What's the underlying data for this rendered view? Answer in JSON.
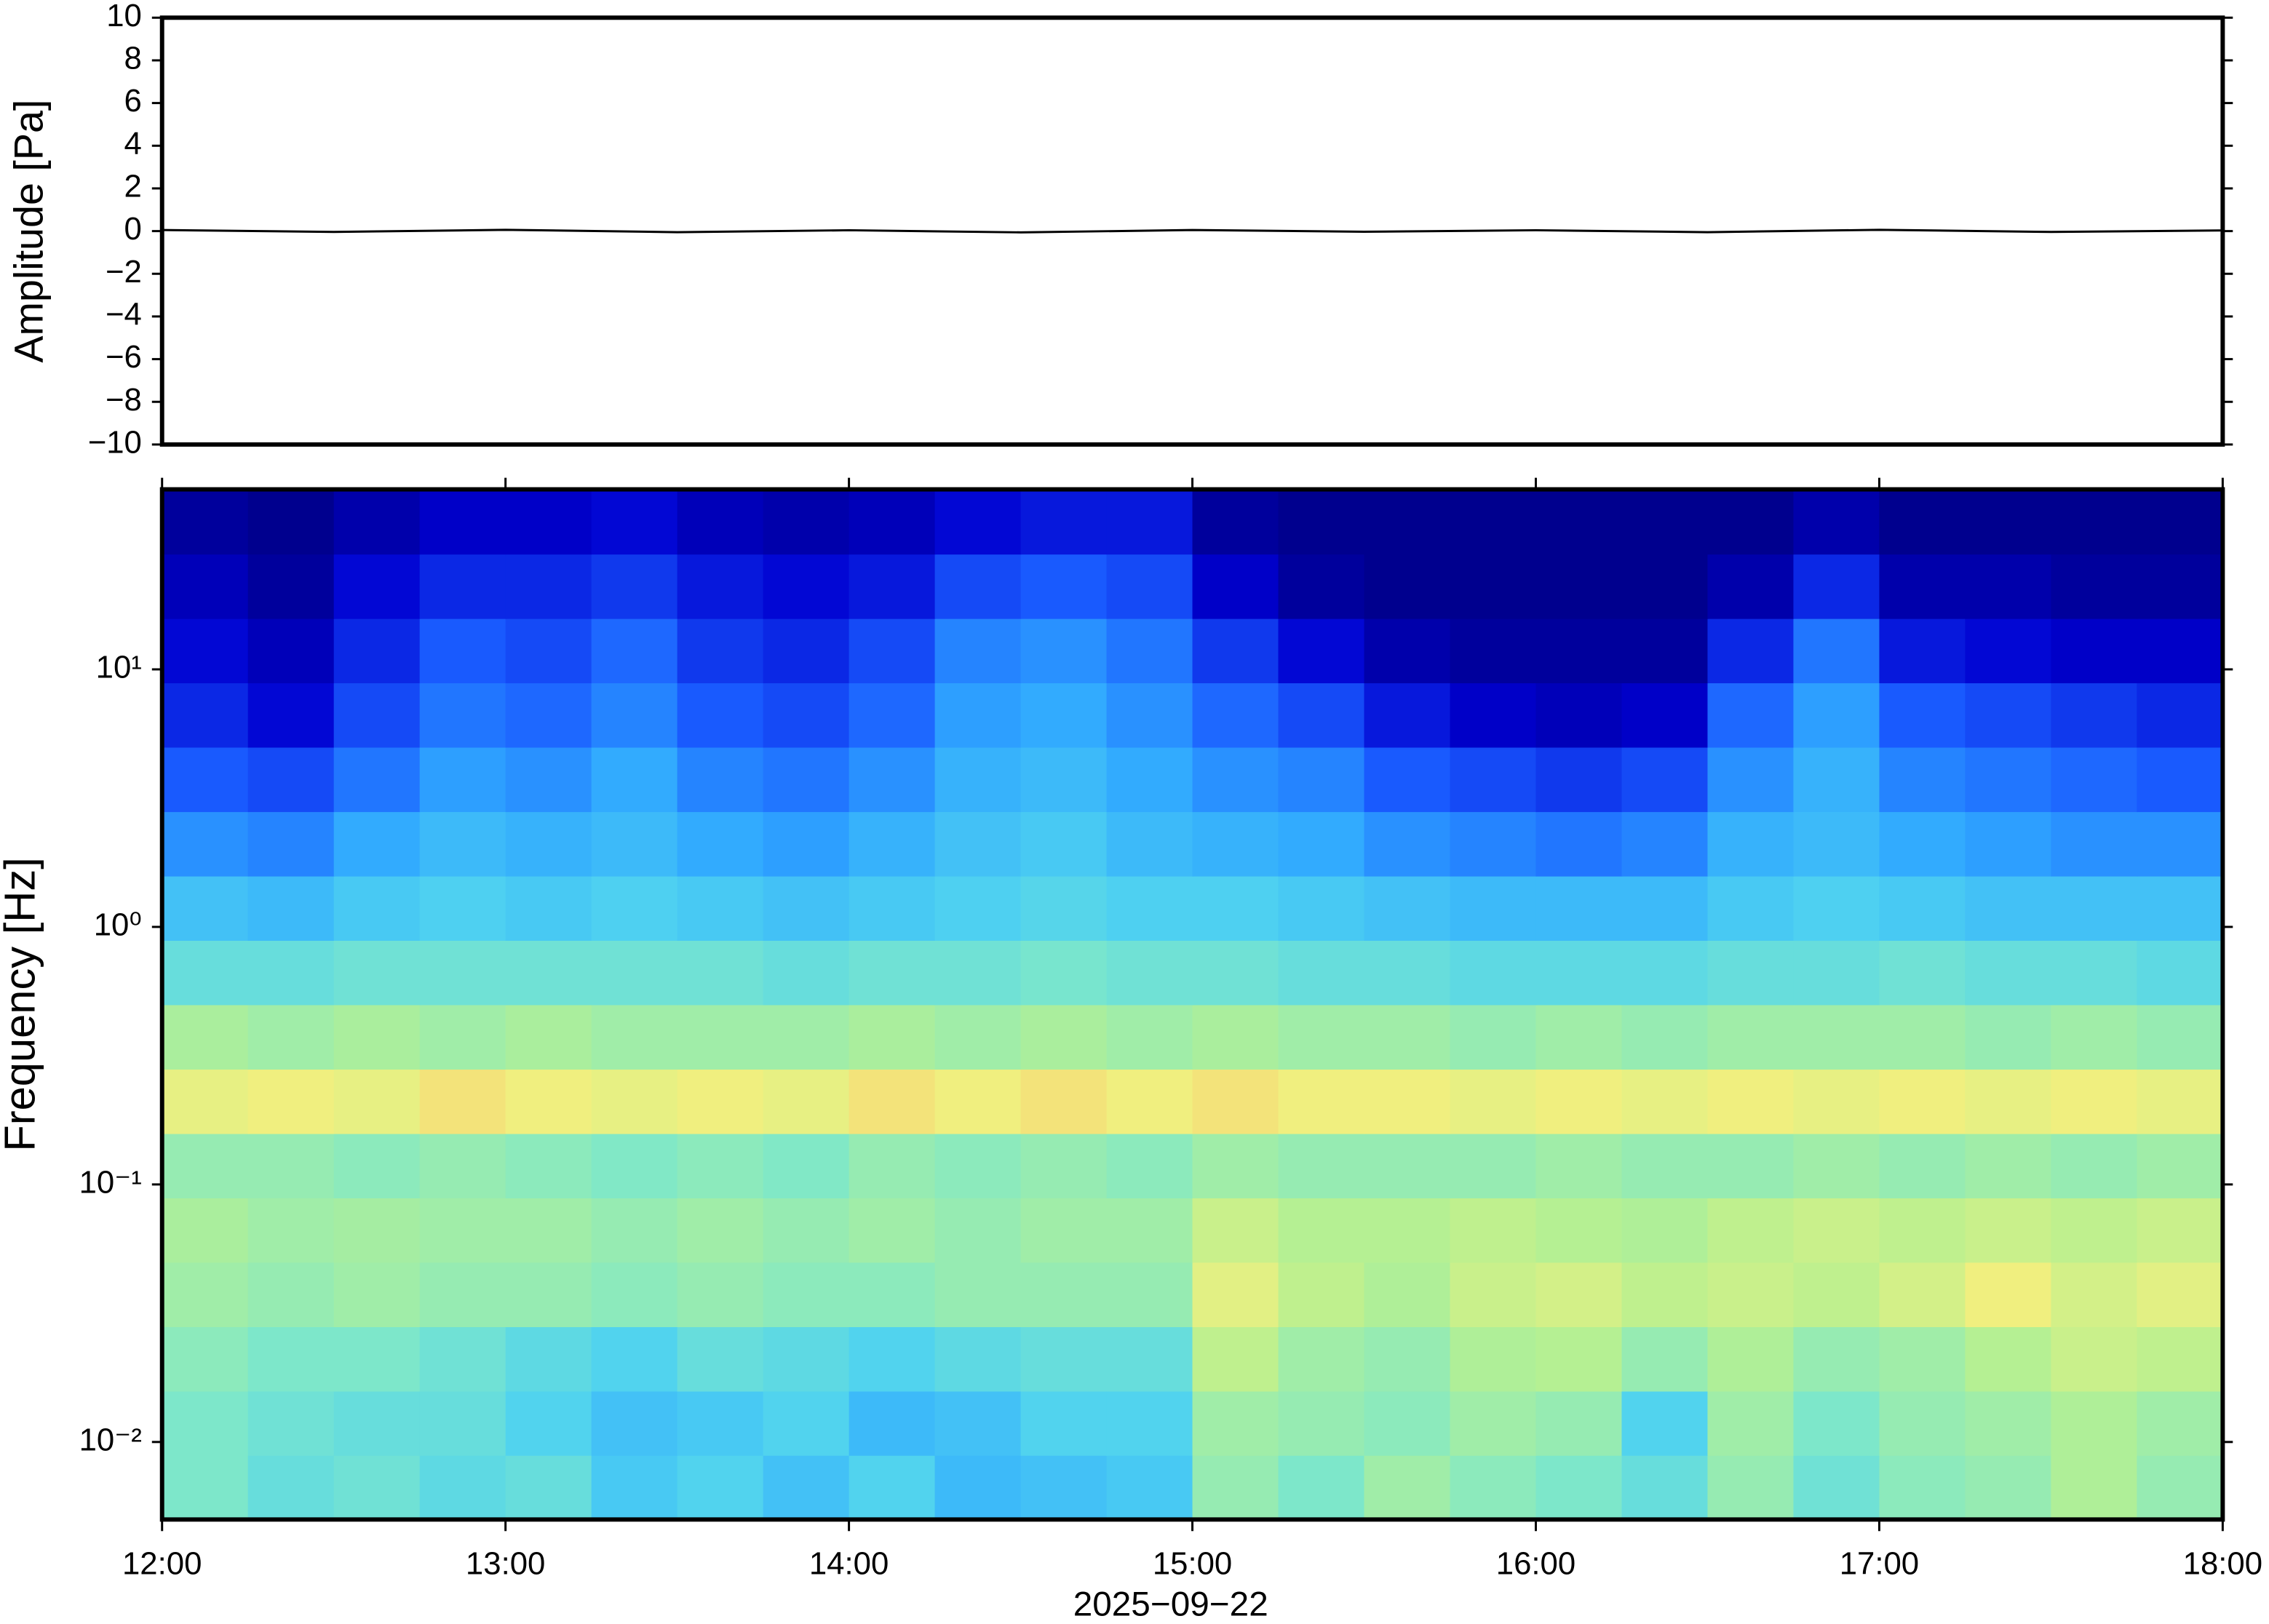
{
  "chart_data": [
    {
      "type": "line",
      "ylabel": "Amplitude [Pa]",
      "x": [
        12,
        12.5,
        13,
        13.5,
        14,
        14.5,
        15,
        15.5,
        16,
        16.5,
        17,
        17.5,
        18
      ],
      "series": [
        {
          "color": "#000000",
          "values": [
            0.05,
            -0.04,
            0.06,
            -0.05,
            0.04,
            -0.06,
            0.05,
            -0.03,
            0.04,
            -0.05,
            0.06,
            -0.04,
            0.03
          ]
        }
      ],
      "xlim": [
        12,
        18
      ],
      "ylim": [
        -10,
        10
      ],
      "yticks": [
        {
          "value": -10,
          "label": "−10"
        },
        {
          "value": -8,
          "label": "−8"
        },
        {
          "value": -6,
          "label": "−6"
        },
        {
          "value": -4,
          "label": "−4"
        },
        {
          "value": -2,
          "label": "−2"
        },
        0,
        2,
        4,
        6,
        8,
        10
      ]
    },
    {
      "type": "spectrogram",
      "ylabel": "Frequency [Hz]",
      "xlabel": "2025−09−22",
      "log_y": true,
      "xlim": [
        12,
        18
      ],
      "ylim": [
        0.005,
        50
      ],
      "xticks": [
        {
          "value": 12,
          "label": "12:00"
        },
        {
          "value": 13,
          "label": "13:00"
        },
        {
          "value": 14,
          "label": "14:00"
        },
        {
          "value": 15,
          "label": "15:00"
        },
        {
          "value": 16,
          "label": "16:00"
        },
        {
          "value": 17,
          "label": "17:00"
        },
        {
          "value": 18,
          "label": "18:00"
        }
      ],
      "yticks": [
        {
          "value": 0.01,
          "label": "10⁻²"
        },
        {
          "value": 0.1,
          "label": "10⁻¹"
        },
        {
          "value": 1,
          "label": "10⁰"
        },
        {
          "value": 10,
          "label": "10¹"
        }
      ],
      "colormap": [
        "#00007f",
        "#0000d0",
        "#1a5cff",
        "#30a8ff",
        "#4fd2f0",
        "#7fe8c8",
        "#b8f090",
        "#f0f080",
        "#ffb060",
        "#ff6040"
      ],
      "zlim": [
        0,
        1
      ],
      "time_bins": [
        12,
        12.25,
        12.5,
        12.75,
        13,
        13.25,
        13.5,
        13.75,
        14,
        14.25,
        14.5,
        14.75,
        15,
        15.25,
        15.5,
        15.75,
        16,
        16.25,
        16.5,
        16.75,
        17,
        17.25,
        17.5,
        17.75,
        18
      ],
      "frequency_bins": [
        0.005,
        0.0089,
        0.0158,
        0.0281,
        0.05,
        0.0889,
        0.158,
        0.281,
        0.5,
        0.889,
        1.58,
        2.81,
        5,
        8.89,
        15.8,
        28.1,
        50
      ],
      "z": [
        [
          0.55,
          0.5,
          0.52,
          0.48,
          0.5,
          0.42,
          0.45,
          0.4,
          0.45,
          0.38,
          0.4,
          0.42,
          0.6,
          0.55,
          0.62,
          0.58,
          0.55,
          0.5,
          0.6,
          0.52,
          0.58,
          0.6,
          0.65,
          0.6
        ],
        [
          0.55,
          0.52,
          0.5,
          0.5,
          0.45,
          0.4,
          0.42,
          0.45,
          0.38,
          0.4,
          0.45,
          0.45,
          0.62,
          0.6,
          0.58,
          0.62,
          0.6,
          0.45,
          0.62,
          0.55,
          0.6,
          0.62,
          0.65,
          0.62
        ],
        [
          0.58,
          0.55,
          0.55,
          0.52,
          0.48,
          0.45,
          0.5,
          0.48,
          0.45,
          0.48,
          0.5,
          0.5,
          0.68,
          0.62,
          0.6,
          0.65,
          0.66,
          0.6,
          0.65,
          0.6,
          0.62,
          0.66,
          0.7,
          0.68
        ],
        [
          0.62,
          0.6,
          0.62,
          0.6,
          0.6,
          0.58,
          0.6,
          0.58,
          0.58,
          0.6,
          0.6,
          0.6,
          0.75,
          0.68,
          0.65,
          0.7,
          0.72,
          0.68,
          0.7,
          0.68,
          0.72,
          0.78,
          0.72,
          0.75
        ],
        [
          0.64,
          0.62,
          0.63,
          0.62,
          0.62,
          0.6,
          0.62,
          0.6,
          0.62,
          0.6,
          0.62,
          0.62,
          0.7,
          0.66,
          0.66,
          0.68,
          0.66,
          0.65,
          0.68,
          0.7,
          0.68,
          0.7,
          0.68,
          0.7
        ],
        [
          0.6,
          0.6,
          0.58,
          0.6,
          0.58,
          0.56,
          0.58,
          0.56,
          0.6,
          0.58,
          0.6,
          0.58,
          0.62,
          0.6,
          0.6,
          0.6,
          0.62,
          0.6,
          0.6,
          0.62,
          0.6,
          0.62,
          0.6,
          0.62
        ],
        [
          0.76,
          0.78,
          0.76,
          0.8,
          0.78,
          0.76,
          0.78,
          0.76,
          0.8,
          0.78,
          0.8,
          0.78,
          0.8,
          0.78,
          0.78,
          0.76,
          0.78,
          0.76,
          0.78,
          0.76,
          0.78,
          0.76,
          0.78,
          0.76
        ],
        [
          0.64,
          0.62,
          0.64,
          0.62,
          0.64,
          0.62,
          0.62,
          0.62,
          0.64,
          0.62,
          0.64,
          0.62,
          0.64,
          0.62,
          0.62,
          0.6,
          0.62,
          0.6,
          0.62,
          0.62,
          0.62,
          0.6,
          0.62,
          0.6
        ],
        [
          0.5,
          0.5,
          0.52,
          0.52,
          0.52,
          0.52,
          0.52,
          0.5,
          0.52,
          0.52,
          0.54,
          0.52,
          0.52,
          0.5,
          0.5,
          0.48,
          0.48,
          0.48,
          0.5,
          0.5,
          0.52,
          0.5,
          0.5,
          0.48
        ],
        [
          0.4,
          0.38,
          0.42,
          0.44,
          0.42,
          0.44,
          0.42,
          0.4,
          0.42,
          0.44,
          0.46,
          0.44,
          0.44,
          0.42,
          0.4,
          0.38,
          0.38,
          0.38,
          0.42,
          0.44,
          0.42,
          0.4,
          0.4,
          0.4
        ],
        [
          0.3,
          0.28,
          0.34,
          0.38,
          0.36,
          0.38,
          0.34,
          0.32,
          0.36,
          0.4,
          0.42,
          0.38,
          0.36,
          0.34,
          0.3,
          0.28,
          0.26,
          0.28,
          0.36,
          0.38,
          0.34,
          0.32,
          0.3,
          0.3
        ],
        [
          0.22,
          0.2,
          0.26,
          0.32,
          0.3,
          0.34,
          0.28,
          0.26,
          0.3,
          0.36,
          0.38,
          0.34,
          0.3,
          0.28,
          0.22,
          0.2,
          0.18,
          0.2,
          0.3,
          0.36,
          0.28,
          0.26,
          0.24,
          0.22
        ],
        [
          0.16,
          0.12,
          0.2,
          0.26,
          0.24,
          0.28,
          0.22,
          0.2,
          0.24,
          0.32,
          0.34,
          0.3,
          0.24,
          0.2,
          0.14,
          0.1,
          0.08,
          0.1,
          0.24,
          0.32,
          0.22,
          0.2,
          0.18,
          0.16
        ],
        [
          0.12,
          0.08,
          0.16,
          0.22,
          0.2,
          0.24,
          0.18,
          0.16,
          0.2,
          0.28,
          0.3,
          0.26,
          0.18,
          0.12,
          0.06,
          0.04,
          0.04,
          0.04,
          0.16,
          0.26,
          0.14,
          0.12,
          0.1,
          0.1
        ],
        [
          0.08,
          0.04,
          0.12,
          0.16,
          0.16,
          0.18,
          0.14,
          0.12,
          0.14,
          0.2,
          0.22,
          0.2,
          0.1,
          0.04,
          0.02,
          0.02,
          0.02,
          0.02,
          0.06,
          0.16,
          0.06,
          0.06,
          0.04,
          0.04
        ],
        [
          0.04,
          0.02,
          0.06,
          0.1,
          0.1,
          0.12,
          0.08,
          0.06,
          0.08,
          0.12,
          0.14,
          0.14,
          0.04,
          0.02,
          0.02,
          0.02,
          0.02,
          0.02,
          0.02,
          0.06,
          0.02,
          0.02,
          0.02,
          0.02
        ]
      ]
    }
  ]
}
